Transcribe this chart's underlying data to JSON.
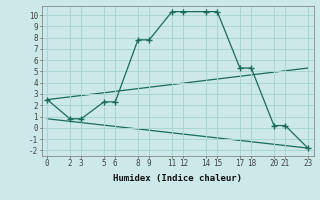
{
  "xlabel": "Humidex (Indice chaleur)",
  "bg_color": "#cce8e8",
  "grid_color": "#aad4d4",
  "line_color": "#1a6b5a",
  "xlim": [
    -0.5,
    23.5
  ],
  "ylim": [
    -2.5,
    10.8
  ],
  "xticks": [
    0,
    2,
    3,
    5,
    6,
    8,
    9,
    11,
    12,
    14,
    15,
    17,
    18,
    20,
    21,
    23
  ],
  "yticks": [
    -2,
    -1,
    0,
    1,
    2,
    3,
    4,
    5,
    6,
    7,
    8,
    9,
    10
  ],
  "line1_x": [
    0,
    2,
    3,
    5,
    6,
    8,
    9,
    11,
    12,
    14,
    15,
    17,
    18,
    20,
    21,
    23
  ],
  "line1_y": [
    2.5,
    0.8,
    0.8,
    2.3,
    2.3,
    7.8,
    7.8,
    10.3,
    10.3,
    10.3,
    10.3,
    5.3,
    5.3,
    0.2,
    0.2,
    -1.8
  ],
  "markers1_x": [
    0,
    2,
    3,
    5,
    6,
    8,
    9,
    11,
    12,
    14,
    15,
    17,
    18,
    20,
    21,
    23
  ],
  "markers1_y": [
    2.5,
    0.8,
    0.8,
    2.3,
    2.3,
    7.8,
    7.8,
    10.3,
    10.3,
    10.3,
    10.3,
    5.3,
    5.3,
    0.2,
    0.2,
    -1.8
  ],
  "line2_x": [
    0,
    23
  ],
  "line2_y": [
    2.5,
    5.3
  ],
  "line3_x": [
    0,
    23
  ],
  "line3_y": [
    0.8,
    -1.8
  ]
}
